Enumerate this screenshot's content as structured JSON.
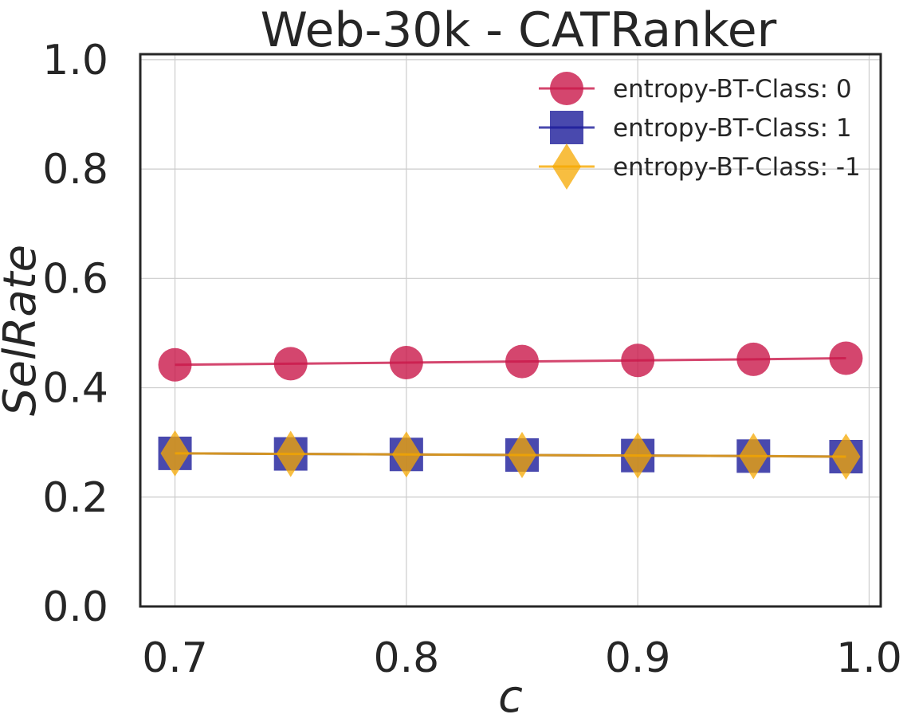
{
  "chart_data": {
    "type": "line",
    "title": "Web-30k - CATRanker",
    "xlabel": "c",
    "ylabel": "SelRate",
    "xlim": [
      0.685,
      1.005
    ],
    "ylim": [
      0.0,
      1.01
    ],
    "grid": true,
    "legend_position": "top-right",
    "x": [
      0.7,
      0.75,
      0.8,
      0.85,
      0.9,
      0.95,
      0.99
    ],
    "x_ticks": [
      0.7,
      0.8,
      0.9,
      1.0
    ],
    "x_tick_labels": [
      "0.7",
      "0.8",
      "0.9",
      "1.0"
    ],
    "y_ticks": [
      0.0,
      0.2,
      0.4,
      0.6,
      0.8,
      1.0
    ],
    "y_tick_labels": [
      "0.0",
      "0.2",
      "0.4",
      "0.6",
      "0.8",
      "1.0"
    ],
    "series": [
      {
        "name": "entropy-BT-Class: 0",
        "color": "#c9184a",
        "marker": "circle",
        "values": [
          0.442,
          0.444,
          0.446,
          0.448,
          0.45,
          0.452,
          0.454
        ]
      },
      {
        "name": "entropy-BT-Class: 1",
        "color": "#1c1c9a",
        "marker": "square",
        "values": [
          0.28,
          0.279,
          0.278,
          0.277,
          0.276,
          0.275,
          0.274
        ]
      },
      {
        "name": "entropy-BT-Class: -1",
        "color": "#f6a800",
        "marker": "diamond",
        "values": [
          0.28,
          0.279,
          0.278,
          0.277,
          0.276,
          0.275,
          0.274
        ]
      }
    ]
  }
}
